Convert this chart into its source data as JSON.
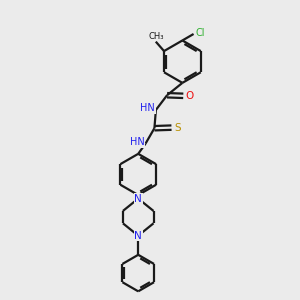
{
  "background_color": "#ebebeb",
  "bond_color": "#1a1a1a",
  "N_color": "#2020ee",
  "O_color": "#ee1010",
  "S_color": "#b89000",
  "Cl_color": "#30b030",
  "line_width": 1.6,
  "figsize": [
    3.0,
    3.0
  ],
  "dpi": 100,
  "xlim": [
    0,
    10
  ],
  "ylim": [
    0,
    10
  ]
}
